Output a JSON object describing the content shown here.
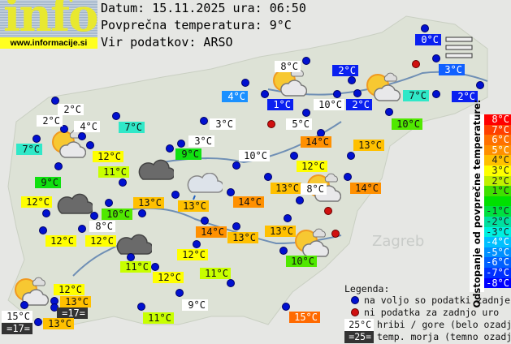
{
  "logo": {
    "word": "info",
    "url": "www.informacije.si"
  },
  "header": {
    "date_line": "Datum: 15.11.2025 ura: 06:50",
    "avg_line": "Povprečna temperatura: 9°C",
    "source_line": "Vir podatkov: ARSO"
  },
  "map_text": {
    "zagreb": "Zagreb"
  },
  "stations": [
    {
      "t": "0°C",
      "bg": "#0a20f0"
    },
    {
      "t": "8°C",
      "bg": "#ffffff"
    },
    {
      "t": "2°C",
      "bg": "#0a20f0"
    },
    {
      "t": "3°C",
      "bg": "#1060ff"
    },
    {
      "t": "4°C",
      "bg": "#1a90ff"
    },
    {
      "t": "1°C",
      "bg": "#0a20f0"
    },
    {
      "t": "10°C",
      "bg": "#ffffff"
    },
    {
      "t": "2°C",
      "bg": "#0a20f0"
    },
    {
      "t": "7°C",
      "bg": "#30e8c8"
    },
    {
      "t": "2°C",
      "bg": "#0a20f0"
    },
    {
      "t": "10°C",
      "bg": "#50e800"
    },
    {
      "t": "5°C",
      "bg": "#ffffff"
    },
    {
      "t": "2°C",
      "bg": "#ffffff"
    },
    {
      "t": "2°C",
      "bg": "#ffffff"
    },
    {
      "t": "4°C",
      "bg": "#ffffff"
    },
    {
      "t": "7°C",
      "bg": "#30e8c8"
    },
    {
      "t": "3°C",
      "bg": "#ffffff"
    },
    {
      "t": "14°C",
      "bg": "#ff9000"
    },
    {
      "t": "13°C",
      "bg": "#ffc000"
    },
    {
      "t": "7°C",
      "bg": "#30e8c8"
    },
    {
      "t": "12°C",
      "bg": "#ffff00"
    },
    {
      "t": "3°C",
      "bg": "#ffffff"
    },
    {
      "t": "9°C",
      "bg": "#10e010"
    },
    {
      "t": "10°C",
      "bg": "#ffffff"
    },
    {
      "t": "11°C",
      "bg": "#c8ff00"
    },
    {
      "t": "12°C",
      "bg": "#ffff00"
    },
    {
      "t": "9°C",
      "bg": "#10e010"
    },
    {
      "t": "13°C",
      "bg": "#ffc000"
    },
    {
      "t": "8°C",
      "bg": "#ffffff"
    },
    {
      "t": "14°C",
      "bg": "#ff9000"
    },
    {
      "t": "12°C",
      "bg": "#ffff00"
    },
    {
      "t": "13°C",
      "bg": "#ffc000"
    },
    {
      "t": "13°C",
      "bg": "#ffc000"
    },
    {
      "t": "14°C",
      "bg": "#ff9000"
    },
    {
      "t": "10°C",
      "bg": "#50e800"
    },
    {
      "t": "8°C",
      "bg": "#ffffff"
    },
    {
      "t": "14°C",
      "bg": "#ff9000"
    },
    {
      "t": "13°C",
      "bg": "#ffc000"
    },
    {
      "t": "13°C",
      "bg": "#ffc000"
    },
    {
      "t": "12°C",
      "bg": "#ffff00"
    },
    {
      "t": "12°C",
      "bg": "#ffff00"
    },
    {
      "t": "12°C",
      "bg": "#ffff00"
    },
    {
      "t": "10°C",
      "bg": "#50e800"
    },
    {
      "t": "11°C",
      "bg": "#c8ff00"
    },
    {
      "t": "12°C",
      "bg": "#ffff00"
    },
    {
      "t": "11°C",
      "bg": "#c8ff00"
    },
    {
      "t": "12°C",
      "bg": "#ffff00"
    },
    {
      "t": "13°C",
      "bg": "#ffc000"
    },
    {
      "t": "=17=",
      "bg": "#333333"
    },
    {
      "t": "15°C",
      "bg": "#ffffff"
    },
    {
      "t": "=17=",
      "bg": "#333333"
    },
    {
      "t": "13°C",
      "bg": "#ffc000"
    },
    {
      "t": "9°C",
      "bg": "#ffffff"
    },
    {
      "t": "11°C",
      "bg": "#c8ff00"
    },
    {
      "t": "15°C",
      "bg": "#ff6a00"
    }
  ],
  "weather_icons": [
    "sun-cloud",
    "sun-cloud",
    "sun-cloud",
    "sun-cloud",
    "sun-cloud",
    "sun-cloud",
    "dark-cloud",
    "dark-cloud",
    "dark-cloud",
    "rain-cloud",
    "fog"
  ],
  "scale": {
    "title": "Odstopanje od povprečne temperature:",
    "steps": [
      {
        "label": "8°C",
        "color": "#ff0000"
      },
      {
        "label": "7°C",
        "color": "#ff4000"
      },
      {
        "label": "6°C",
        "color": "#ff7000"
      },
      {
        "label": "5°C",
        "color": "#ff9000"
      },
      {
        "label": "4°C",
        "color": "#ffc000"
      },
      {
        "label": "3°C",
        "color": "#ffff00"
      },
      {
        "label": "2°C",
        "color": "#c0f000"
      },
      {
        "label": "1°C",
        "color": "#40e000"
      },
      {
        "label": "",
        "color": "#00e000"
      },
      {
        "label": "-1°C",
        "color": "#00e040"
      },
      {
        "label": "-2°C",
        "color": "#00e0a0"
      },
      {
        "label": "-3°C",
        "color": "#00f0e0"
      },
      {
        "label": "-4°C",
        "color": "#00c0ff"
      },
      {
        "label": "-5°C",
        "color": "#0090ff"
      },
      {
        "label": "-6°C",
        "color": "#0060ff"
      },
      {
        "label": "-7°C",
        "color": "#0030ff"
      },
      {
        "label": "-8°C",
        "color": "#0000ff"
      }
    ]
  },
  "legend": {
    "title": "Legenda:",
    "blue": "na voljo so podatki zadnje ure",
    "red": "ni podatka za zadnjo uro",
    "white_sample": "25°C",
    "white": "hribi / gore (belo ozadje)",
    "dark_sample": "=25=",
    "dark": "temp. morja (temno ozadje)"
  }
}
